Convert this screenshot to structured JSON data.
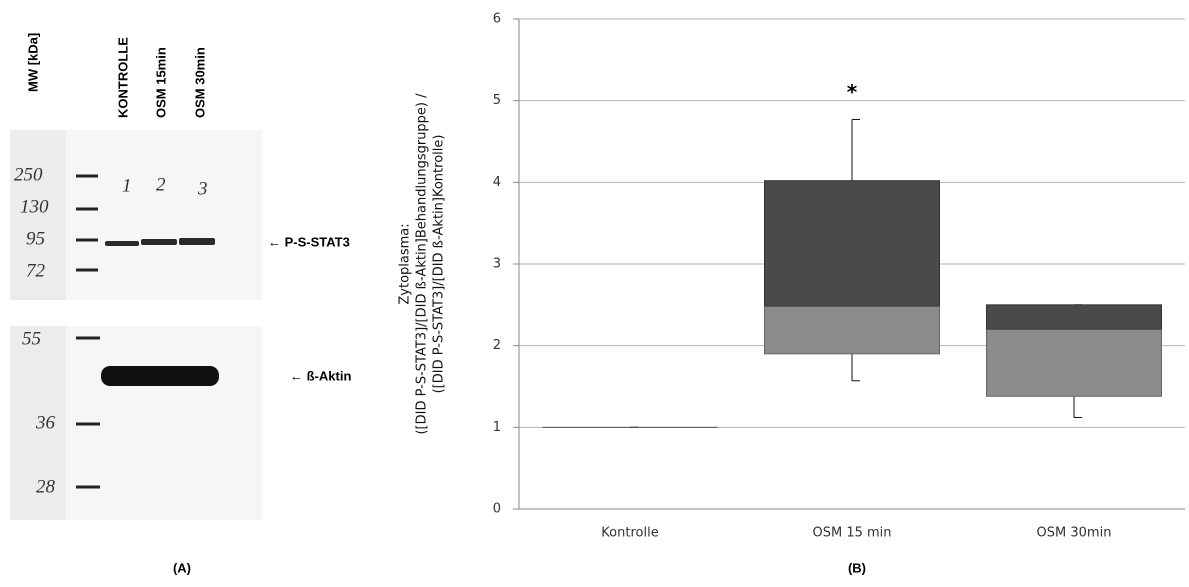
{
  "blot": {
    "headers": [
      "MW [kDa]",
      "KONTROLLE",
      "OSM 15min",
      "OSM 30min"
    ],
    "lane_numbers": [
      "1",
      "2",
      "3"
    ],
    "top_markers": [
      "250",
      "130",
      "95",
      "72"
    ],
    "bottom_markers": [
      "55",
      "36",
      "28"
    ],
    "band_labels": [
      "← P-S-STAT3",
      "← ß-Aktin"
    ]
  },
  "panel_labels": [
    "(A)",
    "(B)"
  ],
  "chart_data": {
    "type": "box",
    "y_label": [
      "Zytoplasma:",
      "([DID P-S-STAT3]/[DID ß-Aktin]Behandlungsgruppe) /",
      "([DID P-S-STAT3]/[DID ß-Aktin]Kontrolle)"
    ],
    "categories": [
      "Kontrolle",
      "OSM 15 min",
      "OSM 30min"
    ],
    "whisker_low": [
      1,
      1.57,
      1.12
    ],
    "q1": [
      1,
      1.9,
      1.38
    ],
    "median": [
      1,
      2.48,
      2.2
    ],
    "q3": [
      1,
      4.02,
      2.5
    ],
    "whisker_high": [
      1,
      4.77,
      2.5
    ],
    "significance": [
      null,
      "*",
      null
    ],
    "lower_color": "#8c8c8c",
    "upper_color": "#4a4a4a",
    "ylim": [
      0,
      6
    ],
    "yticks": [
      0,
      1,
      2,
      3,
      4,
      5,
      6
    ],
    "grid": true
  }
}
